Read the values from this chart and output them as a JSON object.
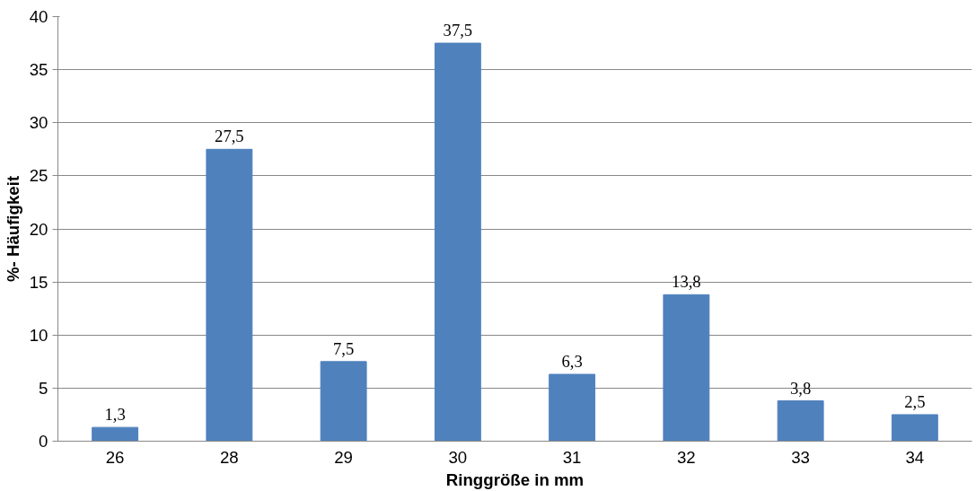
{
  "chart_data": {
    "type": "bar",
    "xlabel": "Ringgröße in mm",
    "ylabel": "%- Häufigkeit",
    "categories": [
      "26",
      "28",
      "29",
      "30",
      "31",
      "32",
      "33",
      "34"
    ],
    "values": [
      1.3,
      27.5,
      7.5,
      37.5,
      6.3,
      13.8,
      3.8,
      2.5
    ],
    "value_labels": [
      "1,3",
      "27,5",
      "7,5",
      "37,5",
      "6,3",
      "13,8",
      "3,8",
      "2,5"
    ],
    "color": "#4f81bd",
    "ylim": [
      0,
      40
    ],
    "yticks": [
      0,
      5,
      10,
      15,
      20,
      25,
      30,
      35,
      40
    ],
    "grid": "y"
  }
}
